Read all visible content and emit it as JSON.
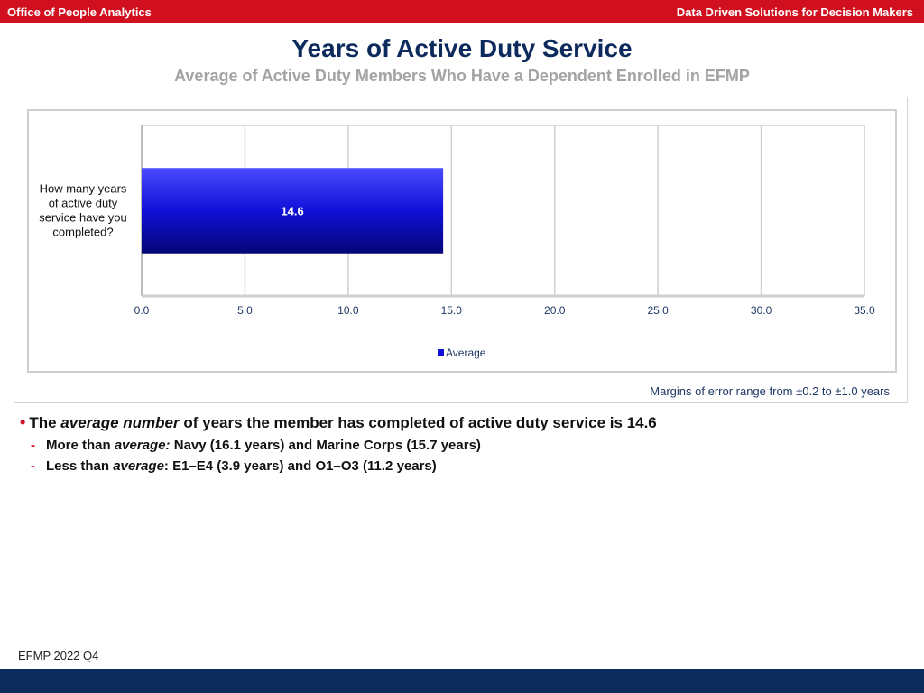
{
  "header": {
    "left_label": "Office of People Analytics",
    "right_label": "Data Driven Solutions for Decision Makers"
  },
  "slide": {
    "title": "Years of Active Duty Service",
    "subtitle": "Average of Active Duty Members Who Have a Dependent Enrolled in EFMP"
  },
  "chart_data": {
    "type": "bar",
    "orientation": "horizontal",
    "categories": [
      "How many years of active duty service have you completed?"
    ],
    "category_lines": [
      "How many years",
      "of active duty",
      "service have you",
      "completed?"
    ],
    "series": [
      {
        "name": "Average",
        "values": [
          14.6
        ],
        "color": "#1010d8"
      }
    ],
    "data_labels": [
      "14.6"
    ],
    "xlim": [
      0,
      35
    ],
    "xticks": [
      "0.0",
      "5.0",
      "10.0",
      "15.0",
      "20.0",
      "25.0",
      "30.0",
      "35.0"
    ],
    "grid": true,
    "legend_position": "bottom"
  },
  "note": {
    "margin_text": "Margins of error range from ±0.2 to ±1.0 years"
  },
  "bullets": {
    "main": {
      "prefix": "The",
      "emph": "average number",
      "rest": "of years the member has completed of active duty service is 14.6"
    },
    "subs": [
      {
        "prefix": "More than",
        "emph": "average:",
        "rest": "Navy (16.1 years) and Marine Corps (15.7 years)"
      },
      {
        "prefix": "Less than",
        "emph": "average",
        "rest": ":  E1–E4 (3.9 years) and O1–O3 (11.2 years)"
      }
    ]
  },
  "footer": {
    "label": "EFMP 2022 Q4"
  },
  "colors": {
    "header_red": "#d0101f",
    "navy": "#0c2a5c",
    "bar_blue": "#1010d8"
  }
}
